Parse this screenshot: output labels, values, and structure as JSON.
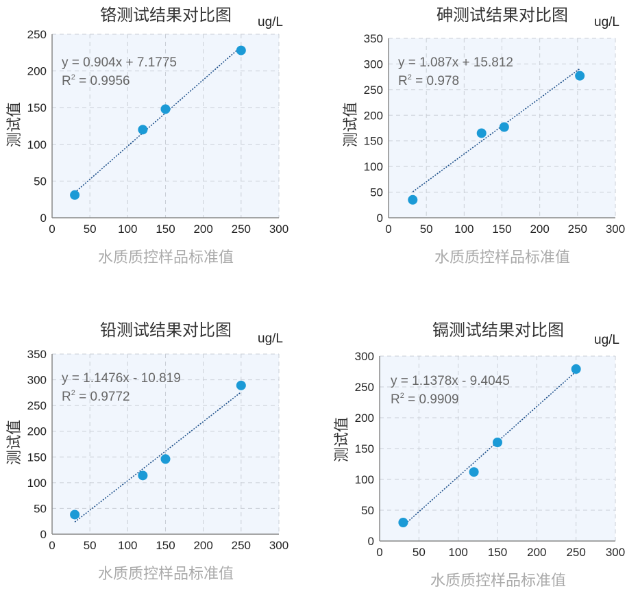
{
  "unit": "ug/L",
  "x_axis_label": "水质质控样品标准值",
  "y_axis_label": "测试值",
  "chart_data": [
    {
      "type": "scatter",
      "title": "铬测试结果对比图",
      "xlabel": "水质质控样品标准值",
      "ylabel": "测试值",
      "unit": "ug/L",
      "xlim": [
        0,
        300
      ],
      "ylim": [
        0,
        250
      ],
      "xticks": [
        0,
        50,
        100,
        150,
        200,
        250,
        300
      ],
      "yticks": [
        0,
        50,
        100,
        150,
        200,
        250
      ],
      "x": [
        30,
        120,
        150,
        250
      ],
      "y": [
        31,
        120,
        148,
        228
      ],
      "equation": "y = 0.904x + 7.1775",
      "r2_label": "R",
      "r2_value": "= 0.9956",
      "trend": {
        "slope": 0.904,
        "intercept": 7.1775
      },
      "grid": true
    },
    {
      "type": "scatter",
      "title": "砷测试结果对比图",
      "xlabel": "水质质控样品标准值",
      "ylabel": "测试值",
      "unit": "ug/L",
      "xlim": [
        0,
        300
      ],
      "ylim": [
        0,
        350
      ],
      "xticks": [
        0,
        50,
        100,
        150,
        200,
        250,
        300
      ],
      "yticks": [
        0,
        50,
        100,
        150,
        200,
        250,
        300,
        350
      ],
      "x": [
        32,
        123,
        153,
        253
      ],
      "y": [
        35,
        165,
        177,
        277
      ],
      "equation": "y = 1.087x + 15.812",
      "r2_label": "R",
      "r2_value": "= 0.978",
      "trend": {
        "slope": 1.087,
        "intercept": 15.812
      },
      "grid": true
    },
    {
      "type": "scatter",
      "title": "铅测试结果对比图",
      "xlabel": "水质质控样品标准值",
      "ylabel": "测试值",
      "unit": "ug/L",
      "xlim": [
        0,
        300
      ],
      "ylim": [
        0,
        350
      ],
      "xticks": [
        0,
        50,
        100,
        150,
        200,
        250,
        300
      ],
      "yticks": [
        0,
        50,
        100,
        150,
        200,
        250,
        300,
        350
      ],
      "x": [
        30,
        120,
        150,
        250
      ],
      "y": [
        38,
        114,
        146,
        289
      ],
      "equation": "y = 1.1476x - 10.819",
      "r2_label": "R",
      "r2_value": "= 0.9772",
      "trend": {
        "slope": 1.1476,
        "intercept": -10.819
      },
      "grid": true
    },
    {
      "type": "scatter",
      "title": "镉测试结果对比图",
      "xlabel": "水质质控样品标准值",
      "ylabel": "测试值",
      "unit": "ug/L",
      "xlim": [
        0,
        300
      ],
      "ylim": [
        0,
        300
      ],
      "xticks": [
        0,
        50,
        100,
        150,
        200,
        250,
        300
      ],
      "yticks": [
        0,
        50,
        100,
        150,
        200,
        250,
        300
      ],
      "x": [
        30,
        120,
        150,
        250
      ],
      "y": [
        30,
        112,
        160,
        279
      ],
      "equation": "y = 1.1378x - 9.4045",
      "r2_label": "R",
      "r2_value": "= 0.9909",
      "trend": {
        "slope": 1.1378,
        "intercept": -9.4045
      },
      "grid": true
    }
  ],
  "colors": {
    "marker": "#1b9ad6",
    "trendline": "#1c4f8a",
    "plot_bg": "#f1f6fd",
    "grid": "#c9ced6",
    "axis": "#888888",
    "equation_text": "#666666"
  }
}
